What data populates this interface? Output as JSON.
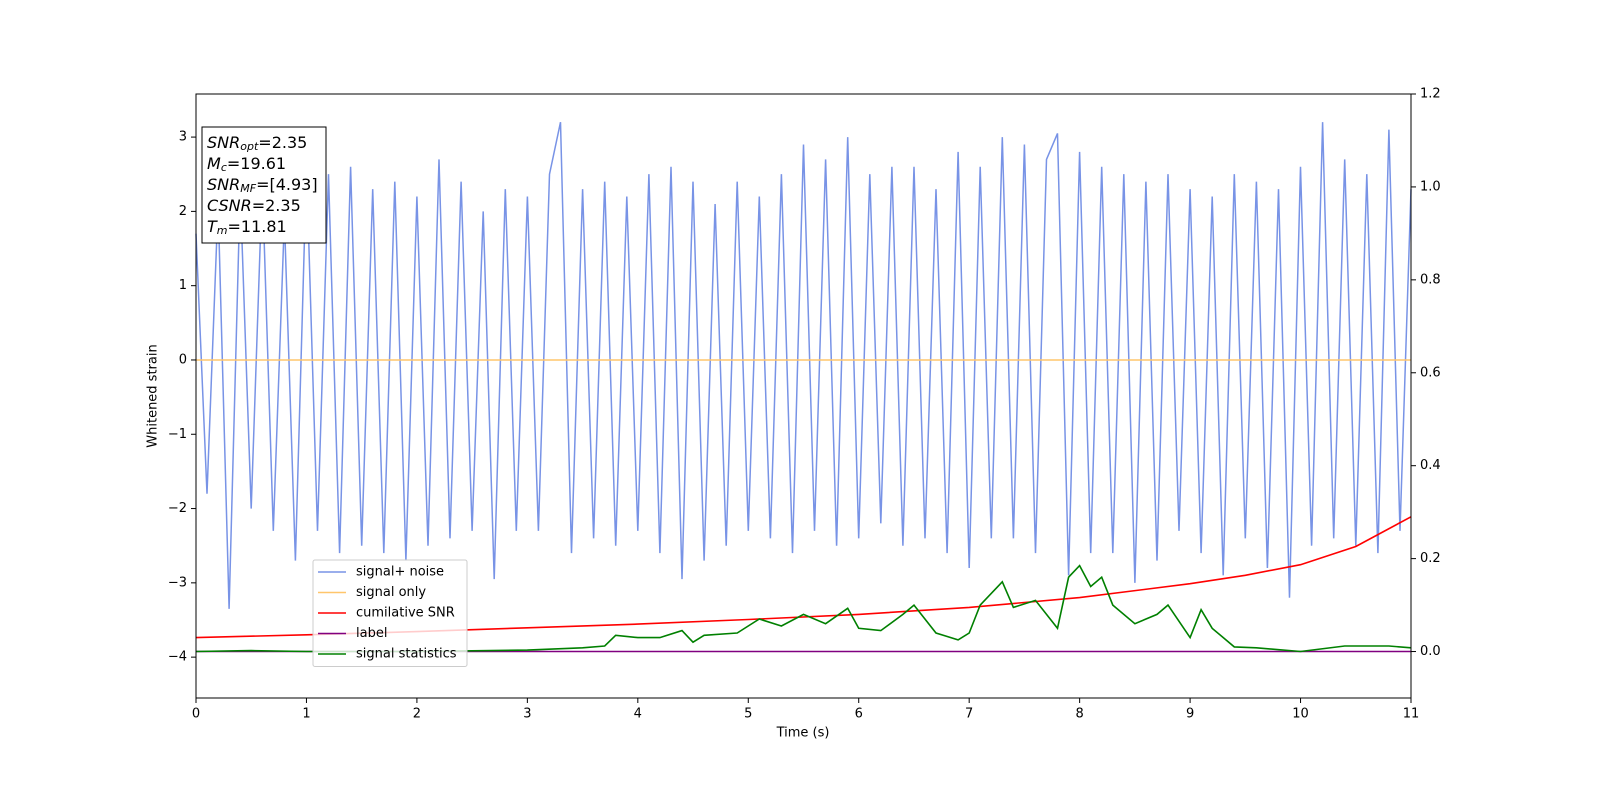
{
  "chart_data": {
    "type": "line",
    "xlabel": "Time (s)",
    "ylabel": "Whitened strain",
    "xlim": [
      0,
      11
    ],
    "ylim": [
      -4.55,
      3.58
    ],
    "y2lim": [
      -0.1,
      1.2
    ],
    "xticks": [
      0,
      1,
      2,
      3,
      4,
      5,
      6,
      7,
      8,
      9,
      10,
      11
    ],
    "yticks": [
      {
        "value": -4,
        "label": "−4"
      },
      {
        "value": -3,
        "label": "−3"
      },
      {
        "value": -2,
        "label": "−2"
      },
      {
        "value": -1,
        "label": "−1"
      },
      0,
      1,
      2,
      3
    ],
    "y2ticks": [
      {
        "value": 0,
        "label": "0.0"
      },
      0.2,
      0.4,
      0.6,
      0.8,
      {
        "value": 1,
        "label": "1.0"
      },
      1.2
    ],
    "legend_position": "lower left",
    "annotation": [
      {
        "main": "SNR",
        "sub": "opt",
        "rest": "=2.35"
      },
      {
        "main": "M",
        "sub": "c",
        "rest": "=19.61"
      },
      {
        "main": "SNR",
        "sub": "MF",
        "rest": "=[4.93]"
      },
      {
        "main": "CSNR",
        "rest": "=2.35"
      },
      {
        "main": "T",
        "sub": "m",
        "rest": "=11.81"
      }
    ],
    "series": [
      {
        "name": "signal+ noise",
        "color": "#7893e6",
        "x": [
          0,
          0.1,
          0.2,
          0.3,
          0.4,
          0.5,
          0.6,
          0.7,
          0.8,
          0.9,
          1,
          1.1,
          1.2,
          1.3,
          1.4,
          1.5,
          1.6,
          1.7,
          1.8,
          1.9,
          2,
          2.1,
          2.2,
          2.3,
          2.4,
          2.5,
          2.6,
          2.7,
          2.8,
          2.9,
          3,
          3.1,
          3.2,
          3.3,
          3.4,
          3.5,
          3.6,
          3.7,
          3.8,
          3.9,
          4,
          4.1,
          4.2,
          4.3,
          4.4,
          4.5,
          4.6,
          4.7,
          4.8,
          4.9,
          5,
          5.1,
          5.2,
          5.3,
          5.4,
          5.5,
          5.6,
          5.7,
          5.8,
          5.9,
          6,
          6.1,
          6.2,
          6.3,
          6.4,
          6.5,
          6.6,
          6.7,
          6.8,
          6.9,
          7,
          7.1,
          7.2,
          7.3,
          7.4,
          7.5,
          7.6,
          7.7,
          7.8,
          7.9,
          8,
          8.1,
          8.2,
          8.3,
          8.4,
          8.5,
          8.6,
          8.7,
          8.8,
          8.9,
          9,
          9.1,
          9.2,
          9.3,
          9.4,
          9.5,
          9.6,
          9.7,
          9.8,
          9.9,
          10,
          10.1,
          10.2,
          10.3,
          10.4,
          10.5,
          10.6,
          10.7,
          10.8,
          10.9,
          11
        ],
        "values": [
          1.7,
          -1.8,
          2.1,
          -3.35,
          2.3,
          -2.0,
          2.4,
          -2.3,
          1.9,
          -2.7,
          2.6,
          -2.3,
          2.5,
          -2.6,
          2.6,
          -2.5,
          2.3,
          -2.6,
          2.4,
          -2.7,
          2.2,
          -2.5,
          2.7,
          -2.4,
          2.4,
          -2.3,
          2.0,
          -2.95,
          2.3,
          -2.3,
          2.2,
          -2.3,
          2.5,
          3.2,
          -2.6,
          2.3,
          -2.4,
          2.4,
          -2.5,
          2.2,
          -2.3,
          2.5,
          -2.6,
          2.6,
          -2.95,
          2.4,
          -2.7,
          2.1,
          -2.5,
          2.4,
          -2.3,
          2.2,
          -2.4,
          2.5,
          -2.6,
          2.9,
          -2.3,
          2.7,
          -2.5,
          3.0,
          -2.4,
          2.5,
          -2.2,
          2.6,
          -2.5,
          2.6,
          -2.4,
          2.3,
          -2.6,
          2.8,
          -2.8,
          2.6,
          -2.4,
          3.0,
          -2.4,
          2.9,
          -2.6,
          2.7,
          3.05,
          -2.9,
          2.8,
          -2.6,
          2.6,
          -2.6,
          2.5,
          -3.0,
          2.4,
          -2.7,
          2.5,
          -2.3,
          2.3,
          -2.6,
          2.2,
          -2.9,
          2.5,
          -2.4,
          2.4,
          -2.8,
          2.3,
          -3.2,
          2.6,
          -2.5,
          3.2,
          -2.4,
          2.7,
          -2.5,
          2.5,
          -2.6,
          3.1,
          -2.3,
          2.3
        ]
      },
      {
        "name": "signal only",
        "color": "#ffc66b",
        "x": [
          0,
          11
        ],
        "values": [
          0,
          0
        ]
      },
      {
        "name": "cumilative SNR",
        "color": "#ff0000",
        "axis": "y2",
        "x": [
          0,
          1,
          2,
          3,
          4,
          5,
          6,
          7,
          8,
          9,
          9.5,
          10,
          10.5,
          11
        ],
        "values": [
          0.03,
          0.036,
          0.043,
          0.051,
          0.059,
          0.069,
          0.08,
          0.095,
          0.116,
          0.146,
          0.164,
          0.187,
          0.226,
          0.29
        ]
      },
      {
        "name": "label",
        "color": "#800080",
        "axis": "y2",
        "x": [
          0,
          11
        ],
        "values": [
          0,
          0
        ]
      },
      {
        "name": "signal statistics",
        "color": "#008000",
        "axis": "y2",
        "x": [
          0,
          0.5,
          1,
          2,
          3,
          3.5,
          3.7,
          3.8,
          4.0,
          4.2,
          4.4,
          4.5,
          4.6,
          4.9,
          5.1,
          5.3,
          5.5,
          5.7,
          5.9,
          6.0,
          6.2,
          6.4,
          6.5,
          6.7,
          6.9,
          7.0,
          7.1,
          7.3,
          7.4,
          7.6,
          7.8,
          7.9,
          8.0,
          8.1,
          8.2,
          8.3,
          8.5,
          8.7,
          8.8,
          9.0,
          9.1,
          9.2,
          9.4,
          9.6,
          10.0,
          10.4,
          10.8,
          11
        ],
        "values": [
          0,
          0.002,
          0,
          0,
          0.003,
          0.008,
          0.012,
          0.035,
          0.03,
          0.03,
          0.045,
          0.02,
          0.035,
          0.04,
          0.07,
          0.055,
          0.08,
          0.06,
          0.093,
          0.05,
          0.045,
          0.08,
          0.1,
          0.04,
          0.025,
          0.04,
          0.1,
          0.15,
          0.095,
          0.11,
          0.05,
          0.16,
          0.185,
          0.14,
          0.16,
          0.1,
          0.06,
          0.08,
          0.1,
          0.03,
          0.09,
          0.05,
          0.01,
          0.008,
          0,
          0.012,
          0.012,
          0.008
        ]
      }
    ]
  }
}
